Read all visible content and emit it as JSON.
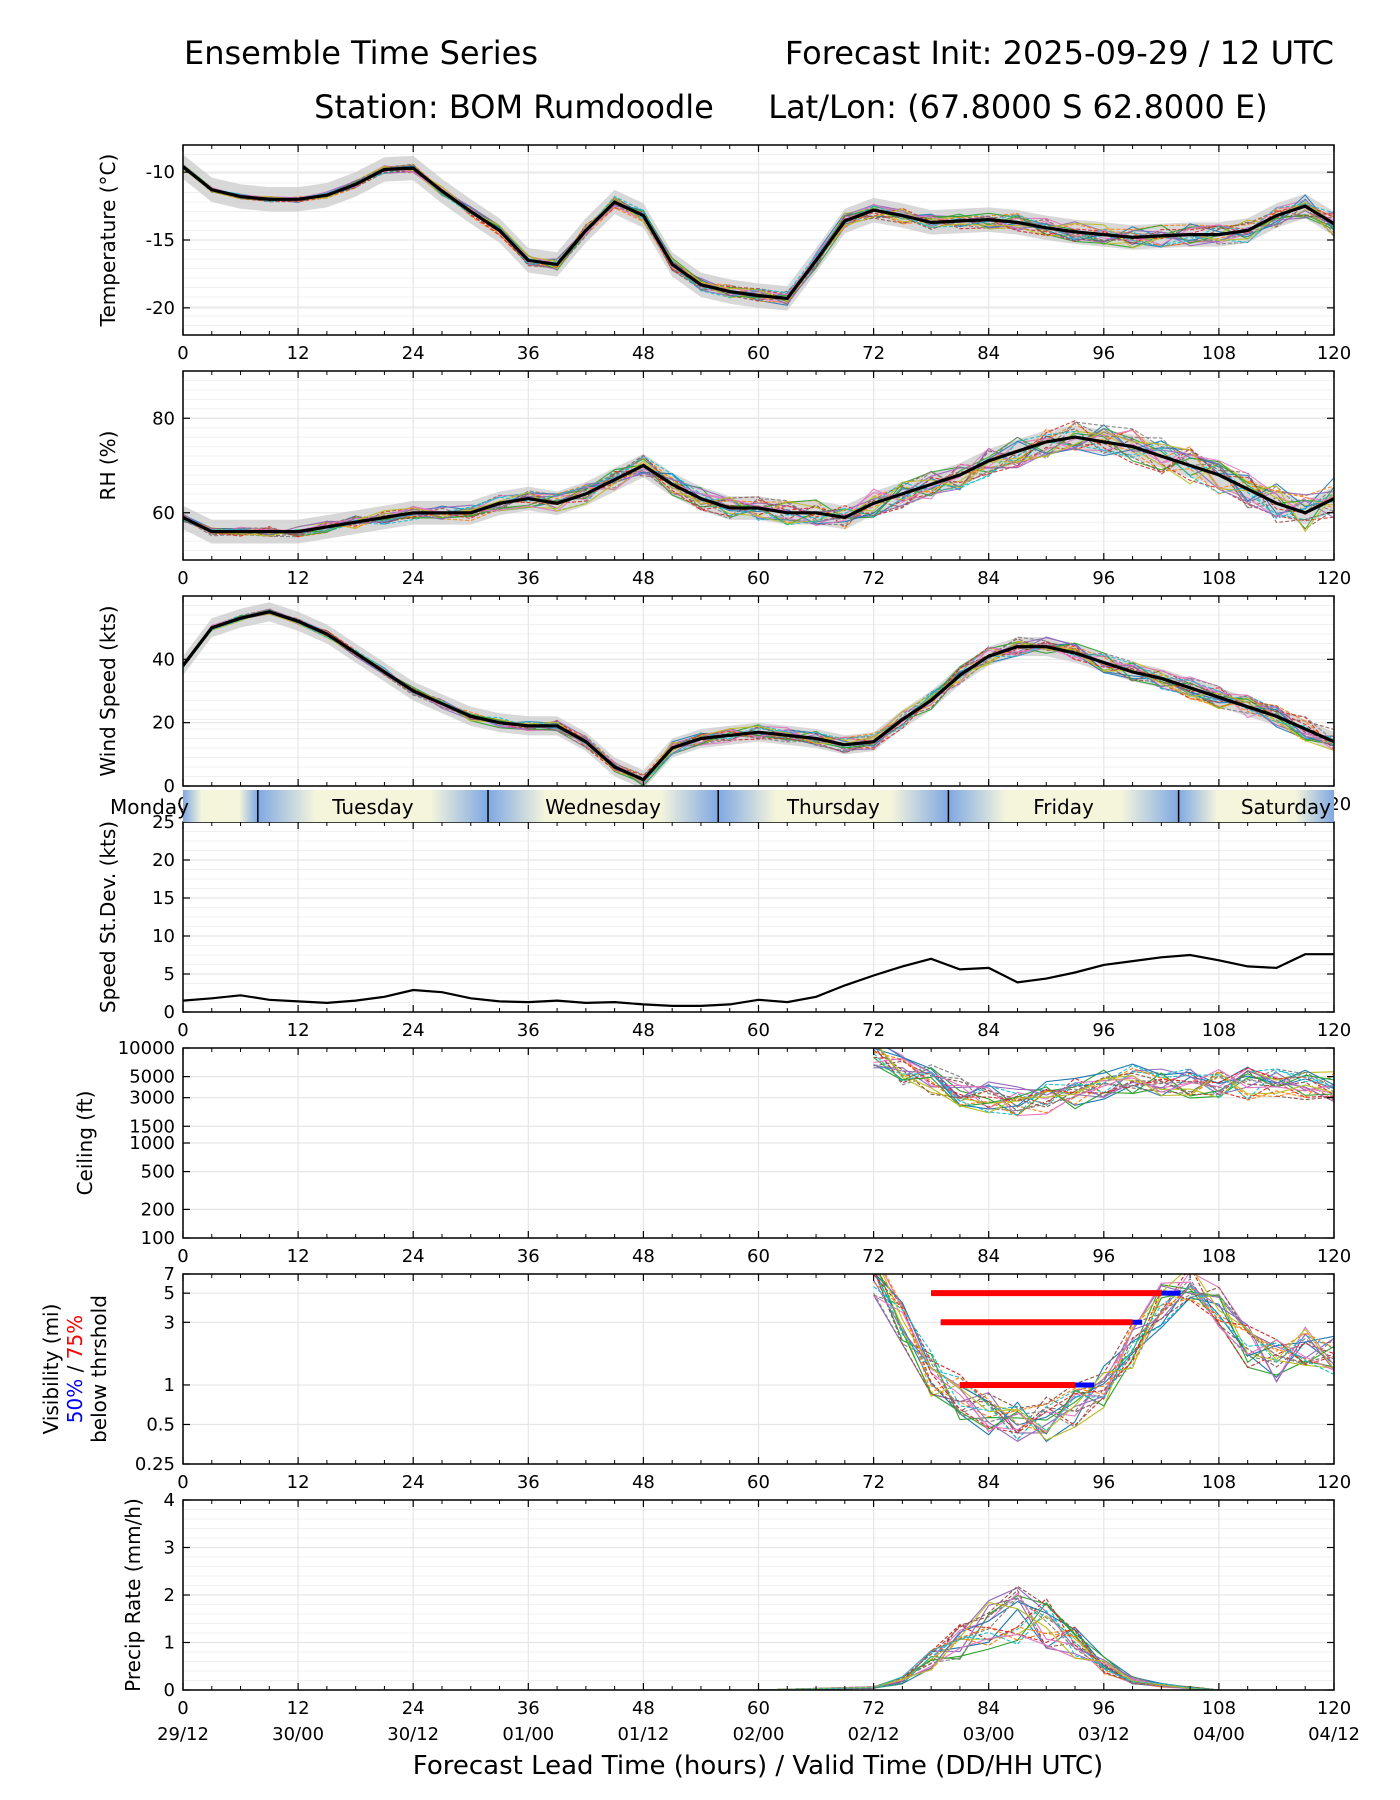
{
  "header": {
    "title_left": "Ensemble Time Series",
    "title_right": "Forecast Init: 2025-09-29 / 12 UTC",
    "station": "Station: BOM Rumdoodle",
    "latlon": "Lat/Lon: (67.8000 S 62.8000 E)"
  },
  "x_axis": {
    "xlabel": "Forecast Lead Time (hours) / Valid Time (DD/HH UTC)",
    "ticks": [
      0,
      12,
      24,
      36,
      48,
      60,
      72,
      84,
      96,
      108,
      120
    ],
    "valid_time_labels": [
      "29/12",
      "30/00",
      "30/12",
      "01/00",
      "01/12",
      "02/00",
      "02/12",
      "03/00",
      "03/12",
      "04/00",
      "04/12"
    ],
    "xlim": [
      0,
      120
    ]
  },
  "day_band": {
    "days": [
      {
        "label": "Monday",
        "start": 0,
        "end": 7.8
      },
      {
        "label": "Tuesday",
        "start": 7.8,
        "end": 31.8
      },
      {
        "label": "Wednesday",
        "start": 31.8,
        "end": 55.8
      },
      {
        "label": "Thursday",
        "start": 55.8,
        "end": 79.8
      },
      {
        "label": "Friday",
        "start": 79.8,
        "end": 103.8
      },
      {
        "label": "Saturday",
        "start": 103.8,
        "end": 120
      }
    ]
  },
  "colors": {
    "mean_line": "#000000",
    "spread_fill": "#c8c8c8",
    "grid": "#e6e6e6",
    "day_blue": "#7fa8e2",
    "day_cream": "#f5f5dc",
    "vis_50": "#0000ff",
    "vis_75": "#ff0000",
    "members": [
      "#1f77b4",
      "#ff7f0e",
      "#2ca02c",
      "#d62728",
      "#9467bd",
      "#8c564b",
      "#e377c2",
      "#7f7f7f",
      "#bcbd22",
      "#17becf"
    ]
  },
  "chart_data": [
    {
      "id": "temperature",
      "type": "line",
      "ylabel": "Temperature (°C)",
      "ylim": [
        -22,
        -8
      ],
      "yticks": [
        -10,
        -15,
        -20
      ],
      "x": [
        0,
        3,
        6,
        9,
        12,
        15,
        18,
        21,
        24,
        27,
        30,
        33,
        36,
        39,
        42,
        45,
        48,
        51,
        54,
        57,
        60,
        63,
        66,
        69,
        72,
        75,
        78,
        81,
        84,
        87,
        90,
        93,
        96,
        99,
        102,
        105,
        108,
        111,
        114,
        117,
        120
      ],
      "series": [
        {
          "name": "Ensemble mean",
          "values": [
            -9.6,
            -11.3,
            -11.8,
            -12.0,
            -12.0,
            -11.7,
            -10.9,
            -9.8,
            -9.7,
            -11.4,
            -12.9,
            -14.3,
            -16.5,
            -16.8,
            -14.3,
            -12.2,
            -13.2,
            -16.8,
            -18.3,
            -18.8,
            -19.1,
            -19.3,
            -16.5,
            -13.6,
            -12.8,
            -13.2,
            -13.7,
            -13.6,
            -13.5,
            -13.7,
            -14.1,
            -14.4,
            -14.6,
            -14.8,
            -14.7,
            -14.6,
            -14.6,
            -14.3,
            -13.2,
            -12.5,
            -13.8
          ]
        }
      ],
      "spread": 0.9
    },
    {
      "id": "rh",
      "type": "line",
      "ylabel": "RH (%)",
      "ylim": [
        50,
        90
      ],
      "yticks": [
        60,
        80
      ],
      "x": [
        0,
        3,
        6,
        9,
        12,
        15,
        18,
        21,
        24,
        27,
        30,
        33,
        36,
        39,
        42,
        45,
        48,
        51,
        54,
        57,
        60,
        63,
        66,
        69,
        72,
        75,
        78,
        81,
        84,
        87,
        90,
        93,
        96,
        99,
        102,
        105,
        108,
        111,
        114,
        117,
        120
      ],
      "series": [
        {
          "name": "Ensemble mean",
          "values": [
            59,
            56,
            56,
            56,
            56,
            57,
            58,
            59,
            60,
            60,
            60,
            62,
            63,
            62,
            64,
            67,
            70,
            66,
            63,
            61,
            61,
            60,
            60,
            59,
            62,
            64,
            66,
            68,
            71,
            73,
            75,
            76,
            75,
            74,
            72,
            70,
            68,
            65,
            62,
            60,
            63
          ]
        }
      ],
      "spread": 2.5
    },
    {
      "id": "wind",
      "type": "line",
      "ylabel": "Wind Speed (kts)",
      "ylim": [
        0,
        60
      ],
      "yticks": [
        0,
        20,
        40
      ],
      "x": [
        0,
        3,
        6,
        9,
        12,
        15,
        18,
        21,
        24,
        27,
        30,
        33,
        36,
        39,
        42,
        45,
        48,
        51,
        54,
        57,
        60,
        63,
        66,
        69,
        72,
        75,
        78,
        81,
        84,
        87,
        90,
        93,
        96,
        99,
        102,
        105,
        108,
        111,
        114,
        117,
        120
      ],
      "series": [
        {
          "name": "Ensemble mean",
          "values": [
            38,
            50,
            53,
            55,
            52,
            48,
            42,
            36,
            30,
            26,
            22,
            20,
            19,
            19,
            14,
            6,
            2,
            12,
            15,
            16,
            17,
            16,
            15,
            13,
            14,
            21,
            27,
            35,
            41,
            44,
            44,
            42,
            39,
            36,
            34,
            31,
            28,
            25,
            22,
            18,
            14
          ]
        }
      ],
      "spread": 3.0
    },
    {
      "id": "speed_stdev",
      "type": "line",
      "ylabel": "Speed St.Dev. (kts)",
      "ylim": [
        0,
        25
      ],
      "yticks": [
        0,
        5,
        10,
        15,
        20,
        25
      ],
      "x": [
        0,
        3,
        6,
        9,
        12,
        15,
        18,
        21,
        24,
        27,
        30,
        33,
        36,
        39,
        42,
        45,
        48,
        51,
        54,
        57,
        60,
        63,
        66,
        69,
        72,
        75,
        78,
        81,
        84,
        87,
        90,
        93,
        96,
        99,
        102,
        105,
        108,
        111,
        114,
        117,
        120
      ],
      "series": [
        {
          "name": "Speed St.Dev.",
          "values": [
            1.5,
            1.8,
            2.2,
            1.6,
            1.4,
            1.2,
            1.5,
            2.0,
            2.9,
            2.6,
            1.8,
            1.4,
            1.3,
            1.5,
            1.2,
            1.3,
            1.0,
            0.8,
            0.8,
            1.0,
            1.6,
            1.3,
            2.0,
            3.5,
            4.8,
            6.0,
            7.0,
            5.6,
            5.8,
            3.9,
            4.4,
            5.2,
            6.2,
            6.7,
            7.2,
            7.5,
            6.8,
            6.0,
            5.8,
            7.6,
            7.6
          ]
        }
      ]
    },
    {
      "id": "ceiling",
      "type": "line",
      "ylabel": "Ceiling (ft)",
      "scale": "log",
      "ylim": [
        100,
        10000
      ],
      "yticks": [
        100,
        200,
        500,
        1000,
        1500,
        3000,
        5000,
        10000
      ],
      "x": [
        72,
        75,
        78,
        81,
        84,
        87,
        90,
        93,
        96,
        99,
        102,
        105,
        108,
        111,
        114,
        117,
        120
      ],
      "series": [
        {
          "name": "Member envelope",
          "values": [
            9000,
            6000,
            4500,
            3500,
            3000,
            2800,
            3000,
            3300,
            4000,
            4600,
            4500,
            4300,
            4200,
            4200,
            4100,
            4000,
            4000
          ]
        }
      ]
    },
    {
      "id": "visibility",
      "type": "line",
      "ylabel": "Visibility (mi)",
      "ylabel_50": "50%",
      "ylabel_sep": " / ",
      "ylabel_75": "75%",
      "ylabel_line3": "below thrshold",
      "scale": "log",
      "ylim": [
        0.25,
        7
      ],
      "yticks": [
        0.25,
        0.5,
        1,
        3,
        5,
        7
      ],
      "x": [
        72,
        75,
        78,
        81,
        84,
        87,
        90,
        93,
        96,
        99,
        102,
        105,
        108,
        111,
        114,
        117,
        120
      ],
      "series": [
        {
          "name": "Member envelope",
          "values": [
            7,
            3,
            1.2,
            0.8,
            0.6,
            0.5,
            0.55,
            0.7,
            1.0,
            2.0,
            4.0,
            6.0,
            4.0,
            2.0,
            1.5,
            2.0,
            1.8
          ]
        }
      ],
      "threshold_bars": [
        {
          "level": 5,
          "p75": [
            78,
            102
          ],
          "p50": [
            78,
            104
          ]
        },
        {
          "level": 3,
          "p75": [
            79,
            99
          ],
          "p50": [
            79,
            100
          ]
        },
        {
          "level": 1,
          "p75": [
            81,
            93
          ],
          "p50": [
            81,
            95
          ]
        }
      ]
    },
    {
      "id": "precip",
      "type": "line",
      "ylabel": "Precip Rate (mm/h)",
      "ylim": [
        0,
        4
      ],
      "yticks": [
        0,
        1,
        2,
        3,
        4
      ],
      "x": [
        0,
        60,
        72,
        75,
        78,
        81,
        84,
        87,
        90,
        93,
        96,
        99,
        102,
        105,
        108,
        120
      ],
      "series": [
        {
          "name": "Member envelope",
          "values": [
            0,
            0,
            0.05,
            0.2,
            0.6,
            1.0,
            1.4,
            1.6,
            1.4,
            1.0,
            0.5,
            0.2,
            0.1,
            0.05,
            0,
            0
          ]
        }
      ]
    }
  ]
}
